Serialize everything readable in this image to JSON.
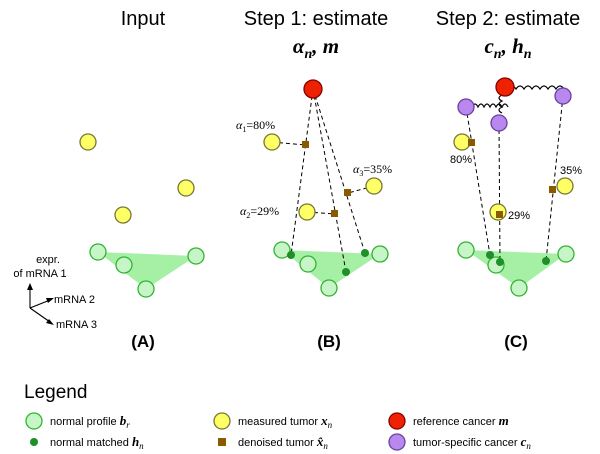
{
  "panels": {
    "a": {
      "title": "Input",
      "label": "(A)"
    },
    "b": {
      "title": "Step 1: estimate",
      "symbols": "αn, m",
      "label": "(B)",
      "alpha1": "α1=80%",
      "alpha2": "α2=29%",
      "alpha3": "α3=35%"
    },
    "c": {
      "title": "Step 2: estimate",
      "symbols": "cn, hn",
      "label": "(C)",
      "pct1": "80%",
      "pct2": "29%",
      "pct3": "35%"
    }
  },
  "axes": {
    "axis1_line1": "expr.",
    "axis1_line2": "of mRNA 1",
    "axis2": "mRNA 2",
    "axis3": "mRNA 3"
  },
  "legend": {
    "title": "Legend",
    "normal_profile": "normal profile br",
    "normal_matched": "normal matched hn",
    "measured_tumor": "measured tumor xn",
    "denoised_tumor": "denoised tumor x̂n",
    "reference_cancer": "reference cancer m",
    "tumor_specific": "tumor-specific cancer cn"
  },
  "colors": {
    "normal_fill": "#c7f5c7",
    "normal_stroke": "#2fb52f",
    "matched": "#1f8f2a",
    "tumor_fill": "#ffff66",
    "tumor_stroke": "#777733",
    "denoised": "#8a5a00",
    "reference": "#ee2200",
    "specific": "#b888ee",
    "hull": "#a6f0a6"
  }
}
